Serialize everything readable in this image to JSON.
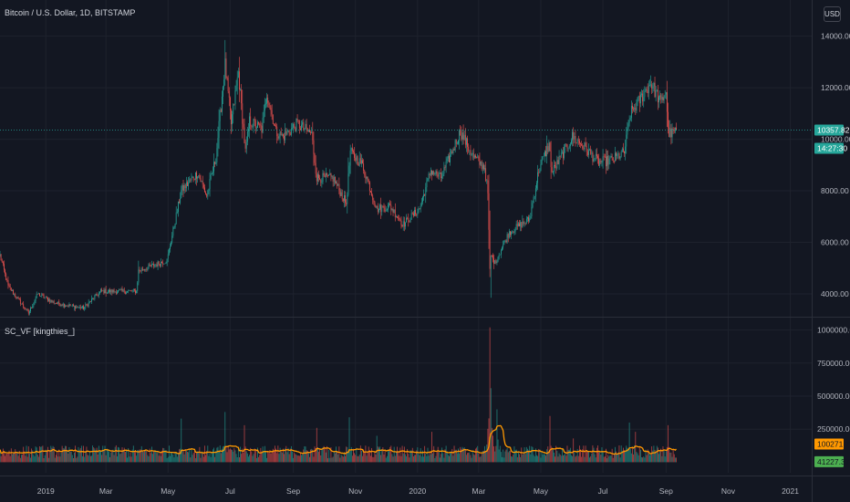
{
  "header": {
    "title": "Bitcoin / U.S. Dollar, 1D, BITSTAMP",
    "currency": "USD"
  },
  "indicator": {
    "title": "SC_VF [kingthies_]"
  },
  "colors": {
    "background": "#131722",
    "grid": "#1e222d",
    "up": "#26a69a",
    "down": "#ef5350",
    "ma": "#ff9800",
    "axis_text": "#b2b5be",
    "price_line": "#26a69a"
  },
  "chart_data": [
    {
      "type": "candlestick",
      "title": "Bitcoin / U.S. Dollar, 1D, BITSTAMP",
      "ylim": [
        3150,
        15050
      ],
      "yticks": [
        4000,
        6000,
        8000,
        10000,
        12000,
        14000
      ],
      "ytick_labels": [
        "4000.00",
        "6000.00",
        "8000.00",
        "10000.00",
        "12000.00",
        "14000.00"
      ],
      "x_start": "2018-11-17",
      "x_end": "2021-01-22",
      "xticks": [
        {
          "date": "2019-01-01",
          "label": "2019"
        },
        {
          "date": "2019-03-01",
          "label": "Mar"
        },
        {
          "date": "2019-05-01",
          "label": "May"
        },
        {
          "date": "2019-07-01",
          "label": "Jul"
        },
        {
          "date": "2019-09-01",
          "label": "Sep"
        },
        {
          "date": "2019-11-01",
          "label": "Nov"
        },
        {
          "date": "2020-01-01",
          "label": "2020"
        },
        {
          "date": "2020-03-01",
          "label": "Mar"
        },
        {
          "date": "2020-05-01",
          "label": "May"
        },
        {
          "date": "2020-07-01",
          "label": "Jul"
        },
        {
          "date": "2020-09-01",
          "label": "Sep"
        },
        {
          "date": "2020-11-01",
          "label": "Nov"
        },
        {
          "date": "2021-01-01",
          "label": "2021"
        }
      ],
      "anchors": [
        [
          "2018-11-17",
          5500
        ],
        [
          "2018-11-25",
          4300
        ],
        [
          "2018-12-15",
          3250
        ],
        [
          "2018-12-24",
          4000
        ],
        [
          "2019-01-10",
          3650
        ],
        [
          "2019-02-07",
          3450
        ],
        [
          "2019-02-24",
          4100
        ],
        [
          "2019-03-31",
          4100
        ],
        [
          "2019-04-02",
          4900
        ],
        [
          "2019-04-30",
          5300
        ],
        [
          "2019-05-14",
          8000
        ],
        [
          "2019-05-30",
          8700
        ],
        [
          "2019-06-08",
          7800
        ],
        [
          "2019-06-17",
          9300
        ],
        [
          "2019-06-26",
          12900
        ],
        [
          "2019-07-02",
          10600
        ],
        [
          "2019-07-09",
          12600
        ],
        [
          "2019-07-16",
          9500
        ],
        [
          "2019-07-20",
          10700
        ],
        [
          "2019-08-01",
          10400
        ],
        [
          "2019-08-06",
          11800
        ],
        [
          "2019-08-15",
          10300
        ],
        [
          "2019-08-22",
          10100
        ],
        [
          "2019-09-05",
          10600
        ],
        [
          "2019-09-19",
          10200
        ],
        [
          "2019-09-24",
          8500
        ],
        [
          "2019-10-10",
          8500
        ],
        [
          "2019-10-23",
          7500
        ],
        [
          "2019-10-27",
          9500
        ],
        [
          "2019-11-08",
          9000
        ],
        [
          "2019-11-22",
          7300
        ],
        [
          "2019-12-05",
          7400
        ],
        [
          "2019-12-18",
          6700
        ],
        [
          "2020-01-03",
          7300
        ],
        [
          "2020-01-14",
          8800
        ],
        [
          "2020-01-24",
          8500
        ],
        [
          "2020-02-12",
          10300
        ],
        [
          "2020-02-25",
          9300
        ],
        [
          "2020-03-07",
          8900
        ],
        [
          "2020-03-10",
          7900
        ],
        [
          "2020-03-12",
          4900
        ],
        [
          "2020-03-13",
          5500
        ],
        [
          "2020-03-17",
          5200
        ],
        [
          "2020-03-31",
          6400
        ],
        [
          "2020-04-20",
          6900
        ],
        [
          "2020-04-29",
          8800
        ],
        [
          "2020-05-09",
          9800
        ],
        [
          "2020-05-12",
          8700
        ],
        [
          "2020-06-01",
          10100
        ],
        [
          "2020-06-10",
          9800
        ],
        [
          "2020-06-27",
          9100
        ],
        [
          "2020-07-10",
          9200
        ],
        [
          "2020-07-22",
          9500
        ],
        [
          "2020-07-28",
          11000
        ],
        [
          "2020-08-09",
          11700
        ],
        [
          "2020-08-17",
          12200
        ],
        [
          "2020-08-27",
          11400
        ],
        [
          "2020-09-01",
          11900
        ],
        [
          "2020-09-03",
          10300
        ],
        [
          "2020-09-06",
          10200
        ],
        [
          "2020-09-11",
          10357.82
        ]
      ],
      "lows": [
        [
          "2019-01-29",
          3350
        ],
        [
          "2020-03-13",
          3850
        ],
        [
          "2019-12-18",
          6450
        ]
      ],
      "highs": [
        [
          "2019-06-26",
          13850
        ],
        [
          "2019-07-10",
          13200
        ],
        [
          "2020-08-17",
          12480
        ],
        [
          "2020-02-13",
          10500
        ]
      ],
      "last_price": 10357.82,
      "last_price_label": "10357.82",
      "countdown_label": "14:27:30"
    },
    {
      "type": "bar",
      "title": "SC_VF [kingthies_]",
      "ylim": [
        -80000,
        1080000
      ],
      "yticks": [
        250000,
        500000,
        750000,
        1000000
      ],
      "ytick_labels": [
        "250000.00",
        "500000.00",
        "750000.00",
        "1000000.00"
      ],
      "base_level": 75000,
      "spikes": [
        [
          "2019-05-14",
          330000
        ],
        [
          "2019-06-26",
          380000
        ],
        [
          "2019-07-15",
          280000
        ],
        [
          "2019-09-24",
          260000
        ],
        [
          "2019-10-26",
          340000
        ],
        [
          "2019-11-22",
          200000
        ],
        [
          "2020-01-15",
          230000
        ],
        [
          "2020-03-12",
          1020000
        ],
        [
          "2020-03-13",
          560000
        ],
        [
          "2020-03-19",
          400000
        ],
        [
          "2020-05-10",
          350000
        ],
        [
          "2020-06-02",
          180000
        ],
        [
          "2020-07-27",
          300000
        ],
        [
          "2020-08-02",
          230000
        ],
        [
          "2020-09-03",
          280000
        ]
      ],
      "series": [
        {
          "name": "SC_VF",
          "style": "histogram"
        },
        {
          "name": "MA",
          "style": "line",
          "last_value": 100271.72,
          "last_label": "100271.72"
        },
        {
          "name": "Volume",
          "last_value": 41227.37,
          "last_label": "41227.37"
        }
      ]
    }
  ]
}
